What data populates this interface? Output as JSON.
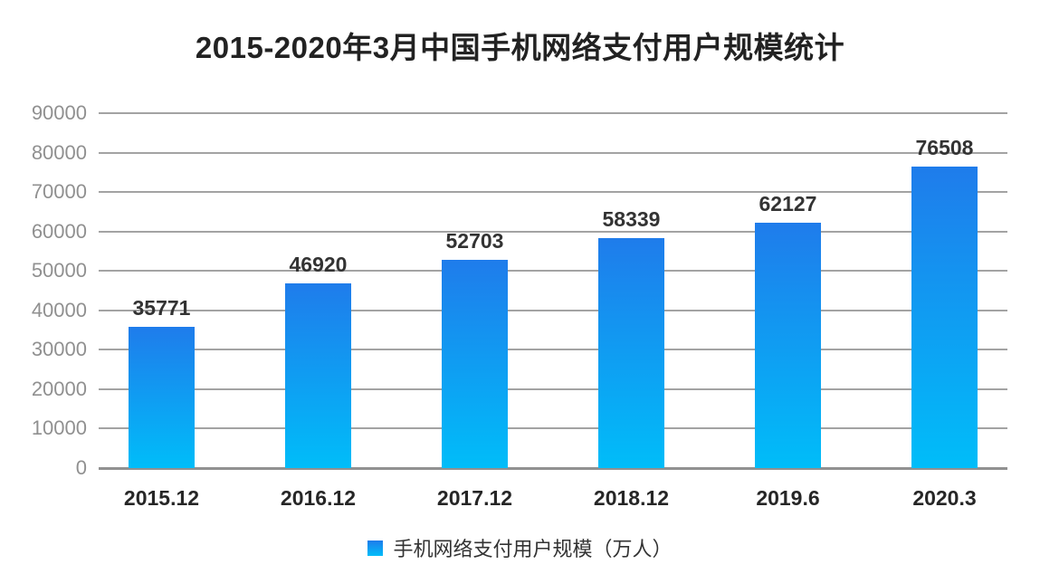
{
  "header": {
    "title": "2015-2020年3月中国手机网络支付用户规模统计"
  },
  "legend": {
    "label": "手机网络支付用户规模（万人）"
  },
  "chart_data": {
    "type": "bar",
    "title": "2015-2020年3月中国手机网络支付用户规模统计",
    "categories": [
      "2015.12",
      "2016.12",
      "2017.12",
      "2018.12",
      "2019.6",
      "2020.3"
    ],
    "values": [
      35771,
      46920,
      52703,
      58339,
      62127,
      76508
    ],
    "series_name": "手机网络支付用户规模（万人）",
    "xlabel": "",
    "ylabel": "",
    "ylim": [
      0,
      90000
    ],
    "yticks": [
      0,
      10000,
      20000,
      30000,
      40000,
      50000,
      60000,
      70000,
      80000,
      90000
    ],
    "grid": true,
    "legend_position": "bottom",
    "colors": {
      "bar_gradient_top": "#1f7ceb",
      "bar_gradient_bottom": "#00bdf9",
      "gridline": "#a3a3a3",
      "axis_line": "#919191",
      "y_tick_label": "#909090",
      "x_tick_label": "#262626",
      "value_label": "#333333",
      "title": "#222222"
    }
  }
}
